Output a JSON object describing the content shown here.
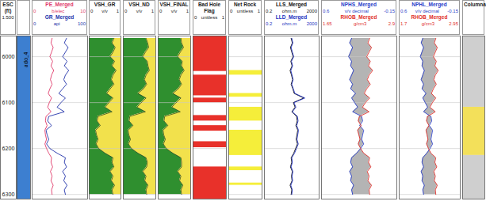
{
  "chart_data": {
    "type": "well_log",
    "ylim": [
      5955,
      6310
    ],
    "yticks": [
      6000,
      6100,
      6200,
      6300
    ],
    "grid": true,
    "depth": [
      5960,
      5970,
      5980,
      5990,
      6000,
      6010,
      6020,
      6030,
      6040,
      6050,
      6060,
      6070,
      6080,
      6090,
      6100,
      6110,
      6120,
      6130,
      6140,
      6150,
      6160,
      6170,
      6180,
      6190,
      6200,
      6210,
      6220,
      6230,
      6240,
      6250,
      6260,
      6270,
      6280,
      6290,
      6300
    ],
    "tracks": [
      {
        "type": "depth",
        "title": "ESC (ft)",
        "subtitle": "1:500"
      },
      {
        "type": "zone",
        "name": "ado_4",
        "color": "#3d7fd0",
        "top": 5955,
        "base": 6310
      },
      {
        "type": "line",
        "series": [
          {
            "name": "PE_Merged",
            "unit": "b/elec",
            "xlim": [
              0,
              10
            ],
            "color": "#e03a6a",
            "values": [
              3.6,
              3.4,
              3.8,
              3.5,
              3.2,
              3.7,
              3.4,
              3.9,
              3.5,
              3.3,
              3.6,
              3.2,
              2.9,
              3.5,
              3.1,
              2.8,
              3.4,
              2.5,
              2.4,
              2.7,
              2.3,
              2.4,
              2.6,
              2.3,
              2.6,
              3.0,
              3.5,
              3.4,
              3.7,
              3.3,
              3.6,
              3.4,
              3.8,
              3.5,
              3.6
            ]
          },
          {
            "name": "GR_Merged",
            "unit": "api",
            "xlim": [
              0,
              100
            ],
            "color": "#2233aa",
            "values": [
              62,
              58,
              65,
              60,
              55,
              63,
              58,
              66,
              60,
              57,
              62,
              55,
              48,
              60,
              52,
              45,
              58,
              30,
              28,
              35,
              25,
              27,
              30,
              26,
              32,
              45,
              60,
              58,
              62,
              55,
              60,
              57,
              63,
              58,
              60
            ]
          }
        ]
      },
      {
        "type": "vsh",
        "title": "VSH_GR",
        "unit": "v/v",
        "xlim": [
          0,
          1
        ],
        "colors": [
          "#2f8f2f",
          "#f2e14c"
        ],
        "values": [
          0.78,
          0.72,
          0.82,
          0.75,
          0.66,
          0.8,
          0.72,
          0.85,
          0.75,
          0.7,
          0.78,
          0.66,
          0.55,
          0.75,
          0.62,
          0.5,
          0.72,
          0.28,
          0.25,
          0.35,
          0.2,
          0.23,
          0.28,
          0.22,
          0.3,
          0.5,
          0.75,
          0.72,
          0.78,
          0.66,
          0.75,
          0.7,
          0.8,
          0.72,
          0.75
        ]
      },
      {
        "type": "vsh",
        "title": "VSH_ND",
        "unit": "v/v",
        "xlim": [
          0,
          1
        ],
        "colors": [
          "#2f8f2f",
          "#f2e14c"
        ],
        "values": [
          0.7,
          0.75,
          0.78,
          0.68,
          0.6,
          0.74,
          0.76,
          0.8,
          0.7,
          0.65,
          0.72,
          0.62,
          0.45,
          0.7,
          0.55,
          0.42,
          0.68,
          0.2,
          0.18,
          0.3,
          0.15,
          0.17,
          0.22,
          0.16,
          0.25,
          0.45,
          0.7,
          0.74,
          0.72,
          0.6,
          0.7,
          0.66,
          0.76,
          0.7,
          0.72
        ]
      },
      {
        "type": "vsh",
        "title": "VSH_FINAL",
        "unit": "v/v",
        "xlim": [
          0,
          1
        ],
        "colors": [
          "#2f8f2f",
          "#f2e14c"
        ],
        "values": [
          0.7,
          0.72,
          0.78,
          0.68,
          0.6,
          0.74,
          0.72,
          0.8,
          0.7,
          0.65,
          0.72,
          0.62,
          0.45,
          0.7,
          0.55,
          0.42,
          0.68,
          0.2,
          0.18,
          0.3,
          0.15,
          0.17,
          0.22,
          0.16,
          0.25,
          0.45,
          0.7,
          0.72,
          0.72,
          0.6,
          0.7,
          0.66,
          0.76,
          0.7,
          0.72
        ]
      },
      {
        "type": "flag",
        "title": "Bad Hole Flag",
        "unit": "unitless",
        "xlim": [
          0,
          1
        ],
        "color": "#e8312a",
        "tops": [
          5955,
          6040,
          6090,
          6128,
          6150,
          6185,
          6240
        ],
        "bases": [
          6032,
          6085,
          6100,
          6140,
          6162,
          6198,
          6310
        ]
      },
      {
        "type": "flag",
        "title": "Net Rock",
        "unit": "unitless",
        "xlim": [
          0,
          1
        ],
        "color": "#f5ee3a",
        "tops": [
          6030,
          6080,
          6110,
          6160,
          6240,
          6275
        ],
        "bases": [
          6040,
          6088,
          6140,
          6215,
          6248,
          6280
        ]
      },
      {
        "type": "line",
        "log": true,
        "series": [
          {
            "name": "LLS_Merged",
            "unit": "ohm.m",
            "xlim": [
              0.2,
              2000
            ],
            "color": "#111111",
            "values": [
              18,
              22,
              16,
              20,
              25,
              17,
              21,
              15,
              19,
              23,
              18,
              24,
              30,
              150,
              26,
              35,
              20,
              45,
              50,
              40,
              55,
              48,
              42,
              52,
              38,
              28,
              18,
              20,
              16,
              22,
              19,
              21,
              15,
              20,
              18
            ]
          },
          {
            "name": "LLD_Merged",
            "unit": "ohm.m",
            "xlim": [
              0.2,
              2000
            ],
            "color": "#2030c0",
            "values": [
              20,
              24,
              18,
              22,
              28,
              19,
              23,
              17,
              21,
              25,
              20,
              26,
              34,
              180,
              29,
              40,
              22,
              52,
              58,
              46,
              62,
              55,
              48,
              60,
              44,
              32,
              20,
              22,
              18,
              24,
              21,
              23,
              17,
              22,
              20
            ]
          }
        ]
      },
      {
        "type": "line",
        "color": "#b4b4b4",
        "series": [
          {
            "name": "NPHS_Merged",
            "unit": "v/v decimal",
            "xlim": [
              0.6,
              -0.15
            ],
            "color": "#2a40c8",
            "values": [
              0.3,
              0.32,
              0.29,
              0.31,
              0.33,
              0.3,
              0.31,
              0.28,
              0.3,
              0.32,
              0.29,
              0.31,
              0.26,
              0.3,
              0.27,
              0.24,
              0.29,
              0.2,
              0.19,
              0.22,
              0.18,
              0.19,
              0.2,
              0.18,
              0.21,
              0.25,
              0.3,
              0.31,
              0.29,
              0.32,
              0.3,
              0.31,
              0.28,
              0.3,
              0.29
            ]
          },
          {
            "name": "RHOB_Merged",
            "unit": "g/cm3",
            "xlim": [
              1.65,
              2.9
            ],
            "color": "#e0302a",
            "values": [
              2.45,
              2.42,
              2.48,
              2.44,
              2.4,
              2.46,
              2.43,
              2.5,
              2.44,
              2.41,
              2.46,
              2.4,
              2.36,
              2.45,
              2.38,
              2.33,
              2.44,
              2.28,
              2.26,
              2.31,
              2.25,
              2.27,
              2.29,
              2.26,
              2.3,
              2.35,
              2.45,
              2.43,
              2.47,
              2.41,
              2.44,
              2.42,
              2.48,
              2.44,
              2.45
            ]
          }
        ]
      },
      {
        "type": "line",
        "color": "#b4b4b4",
        "series": [
          {
            "name": "NPHL_Merged",
            "unit": "v/v decimal",
            "xlim": [
              0.6,
              -0.15
            ],
            "color": "#2a40c8",
            "values": [
              0.31,
              0.33,
              0.3,
              0.32,
              0.34,
              0.31,
              0.32,
              0.29,
              0.31,
              0.33,
              0.3,
              0.32,
              0.27,
              0.31,
              0.28,
              0.25,
              0.3,
              0.21,
              0.2,
              0.23,
              0.19,
              0.2,
              0.21,
              0.19,
              0.22,
              0.26,
              0.31,
              0.32,
              0.3,
              0.33,
              0.31,
              0.32,
              0.29,
              0.31,
              0.3
            ]
          },
          {
            "name": "RHOB_Merged",
            "unit": "g/cm3",
            "xlim": [
              1.7,
              2.95
            ],
            "color": "#e0302a",
            "values": [
              2.45,
              2.42,
              2.48,
              2.44,
              2.4,
              2.46,
              2.43,
              2.5,
              2.44,
              2.41,
              2.46,
              2.4,
              2.36,
              2.45,
              2.38,
              2.33,
              2.44,
              2.28,
              2.26,
              2.31,
              2.25,
              2.27,
              2.29,
              2.26,
              2.3,
              2.35,
              2.45,
              2.43,
              2.47,
              2.41,
              2.44,
              2.42,
              2.48,
              2.44,
              2.45
            ]
          }
        ]
      },
      {
        "type": "lithology",
        "title": "Columna",
        "tops": [
          5955,
          6110,
          6215
        ],
        "bases": [
          6110,
          6215,
          6310
        ],
        "colors": [
          "#cfcfcf",
          "#f3e05a",
          "#cfcfcf"
        ]
      }
    ]
  }
}
